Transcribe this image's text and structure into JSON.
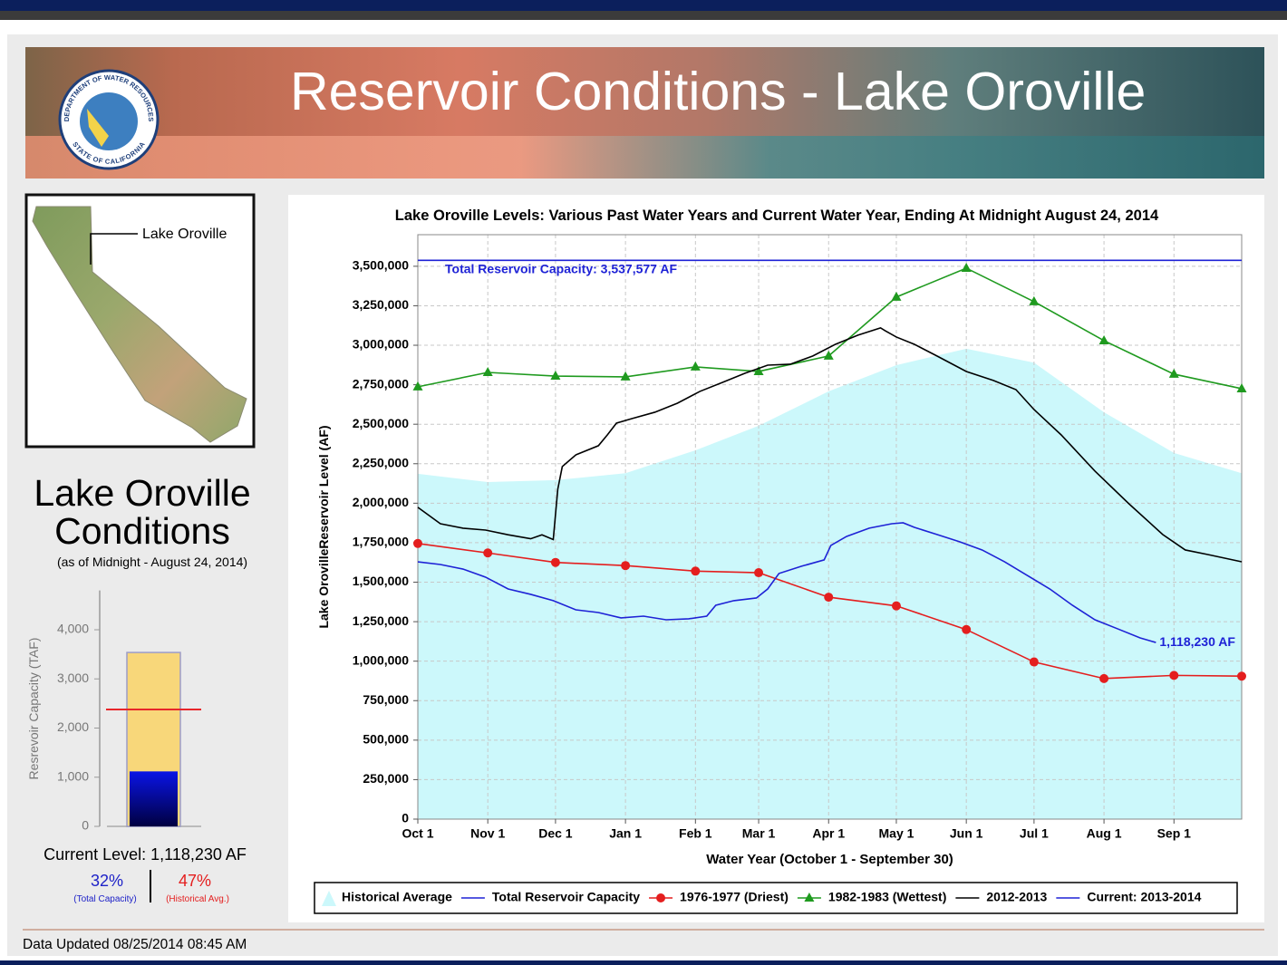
{
  "header": {
    "title": "Reservoir Conditions - Lake Oroville",
    "seal_top": "DEPARTMENT OF WATER RESOURCES",
    "seal_bottom": "STATE OF CALIFORNIA"
  },
  "map": {
    "label": "Lake Oroville"
  },
  "conditions": {
    "title": [
      "Lake Oroville",
      "Conditions"
    ],
    "as_of": "(as of Midnight - August 24, 2014)",
    "current_level": "Current Level: 1,118,230 AF",
    "pct_capacity": "32%",
    "pct_capacity_label": "(Total Capacity)",
    "pct_average": "47%",
    "pct_average_label": "(Historical Avg.)"
  },
  "footer": {
    "updated": "Data Updated 08/25/2014 08:45 AM"
  },
  "chart_data": [
    {
      "type": "line",
      "title": "Lake Oroville Levels: Various Past Water Years and Current Water Year, Ending At Midnight August 24, 2014",
      "x_label": "Water Year (October 1 - September 30)",
      "y_label": "Lake OrovilleReservoir Level (AF)",
      "xlim": [
        0,
        365
      ],
      "xticks": [
        {
          "value": 0,
          "label": "Oct 1"
        },
        {
          "value": 31,
          "label": "Nov 1"
        },
        {
          "value": 61,
          "label": "Dec 1"
        },
        {
          "value": 92,
          "label": "Jan 1"
        },
        {
          "value": 123,
          "label": "Feb 1"
        },
        {
          "value": 151,
          "label": "Mar 1"
        },
        {
          "value": 182,
          "label": "Apr 1"
        },
        {
          "value": 212,
          "label": "May 1"
        },
        {
          "value": 243,
          "label": "Jun 1"
        },
        {
          "value": 273,
          "label": "Jul 1"
        },
        {
          "value": 304,
          "label": "Aug 1"
        },
        {
          "value": 335,
          "label": "Sep 1"
        }
      ],
      "ylim": [
        0,
        3700000
      ],
      "yticks": [
        0,
        {
          "value": 250000,
          "label": "250,000"
        },
        {
          "value": 500000,
          "label": "500,000"
        },
        {
          "value": 750000,
          "label": "750,000"
        },
        {
          "value": 1000000,
          "label": "1,000,000"
        },
        {
          "value": 1250000,
          "label": "1,250,000"
        },
        {
          "value": 1500000,
          "label": "1,500,000"
        },
        {
          "value": 1750000,
          "label": "1,750,000"
        },
        {
          "value": 2000000,
          "label": "2,000,000"
        },
        {
          "value": 2250000,
          "label": "2,250,000"
        },
        {
          "value": 2500000,
          "label": "2,500,000"
        },
        {
          "value": 2750000,
          "label": "2,750,000"
        },
        {
          "value": 3000000,
          "label": "3,000,000"
        },
        {
          "value": 3250000,
          "label": "3,250,000"
        },
        {
          "value": 3500000,
          "label": "3,500,000"
        }
      ],
      "grid": true,
      "legend": "bottom",
      "series": [
        {
          "name": "Historical Average",
          "color": "#ccf8fb",
          "fill": true,
          "x": [
            0,
            31,
            61,
            92,
            123,
            151,
            182,
            212,
            243,
            273,
            304,
            335,
            365
          ],
          "values": [
            2186000,
            2134000,
            2146000,
            2190000,
            2335000,
            2490000,
            2708000,
            2874000,
            2978000,
            2890000,
            2576000,
            2318000,
            2190000
          ]
        },
        {
          "name": "Total Reservoir Capacity",
          "color": "#1e22d6",
          "x": [
            0,
            365
          ],
          "values": [
            3537577,
            3537577
          ]
        },
        {
          "name": "1976-1977 (Driest)",
          "color": "#e41e1e",
          "marker": "circle",
          "x": [
            0,
            31,
            61,
            92,
            123,
            151,
            182,
            212,
            243,
            273,
            304,
            335,
            365
          ],
          "values": [
            1745000,
            1685000,
            1625000,
            1605000,
            1570000,
            1560000,
            1405000,
            1350000,
            1200000,
            995000,
            890000,
            910000,
            905000
          ]
        },
        {
          "name": "1982-1983 (Wettest)",
          "color": "#1f9a1f",
          "marker": "triangle",
          "x": [
            0,
            31,
            61,
            92,
            123,
            151,
            182,
            212,
            243,
            273,
            304,
            335,
            365
          ],
          "values": [
            2737000,
            2828000,
            2805000,
            2800000,
            2863000,
            2834000,
            2932000,
            3305000,
            3488000,
            3276000,
            3029000,
            2817000,
            2725000
          ]
        },
        {
          "name": "2012-2013",
          "color": "#000000",
          "x": [
            0,
            10,
            20,
            30,
            40,
            50,
            55,
            60,
            62,
            64,
            70,
            80,
            84,
            88,
            95,
            105,
            115,
            125,
            135,
            145,
            155,
            165,
            175,
            185,
            195,
            205,
            207,
            212,
            220,
            230,
            243,
            255,
            265,
            273,
            285,
            300,
            315,
            330,
            340,
            350,
            365
          ],
          "values": [
            1974000,
            1870000,
            1842000,
            1830000,
            1800000,
            1775000,
            1800000,
            1770000,
            2088000,
            2232000,
            2306000,
            2364000,
            2433000,
            2507000,
            2536000,
            2576000,
            2633000,
            2708000,
            2765000,
            2823000,
            2874000,
            2880000,
            2932000,
            3006000,
            3064000,
            3110000,
            3092000,
            3052000,
            3006000,
            2932000,
            2834000,
            2777000,
            2719000,
            2593000,
            2433000,
            2203000,
            1997000,
            1802000,
            1704000,
            1675000,
            1629000
          ]
        },
        {
          "name": "Current: 2013-2014",
          "color": "#1e22d6",
          "x": [
            0,
            10,
            20,
            30,
            40,
            50,
            60,
            70,
            80,
            90,
            100,
            110,
            120,
            128,
            132,
            140,
            150,
            155,
            160,
            170,
            180,
            183,
            190,
            200,
            210,
            215,
            220,
            230,
            240,
            250,
            260,
            270,
            280,
            290,
            300,
            310,
            320,
            327
          ],
          "values": [
            1629000,
            1612000,
            1583000,
            1532000,
            1457000,
            1423000,
            1383000,
            1325000,
            1308000,
            1274000,
            1285000,
            1262000,
            1268000,
            1285000,
            1354000,
            1383000,
            1400000,
            1457000,
            1555000,
            1601000,
            1641000,
            1733000,
            1790000,
            1842000,
            1870000,
            1876000,
            1847000,
            1802000,
            1756000,
            1704000,
            1629000,
            1543000,
            1457000,
            1354000,
            1262000,
            1205000,
            1147000,
            1118230
          ]
        }
      ],
      "annotations": [
        "Total Reservoir Capacity: 3,537,577 AF",
        "1,118,230 AF"
      ]
    },
    {
      "type": "bar",
      "y_label": "Resrevoir Capacity (TAF)",
      "ylim": [
        0,
        4800
      ],
      "yticks": [
        0,
        {
          "value": 1000,
          "label": "1,000"
        },
        {
          "value": 2000,
          "label": "2,000"
        },
        {
          "value": 3000,
          "label": "3,000"
        },
        {
          "value": 4000,
          "label": "4,000"
        }
      ],
      "values": [
        3537.577,
        1118.23
      ],
      "colors": [
        "#f8d77a",
        "#0a14e6"
      ],
      "reference": 2379,
      "reference_color": "#e8262a"
    }
  ]
}
